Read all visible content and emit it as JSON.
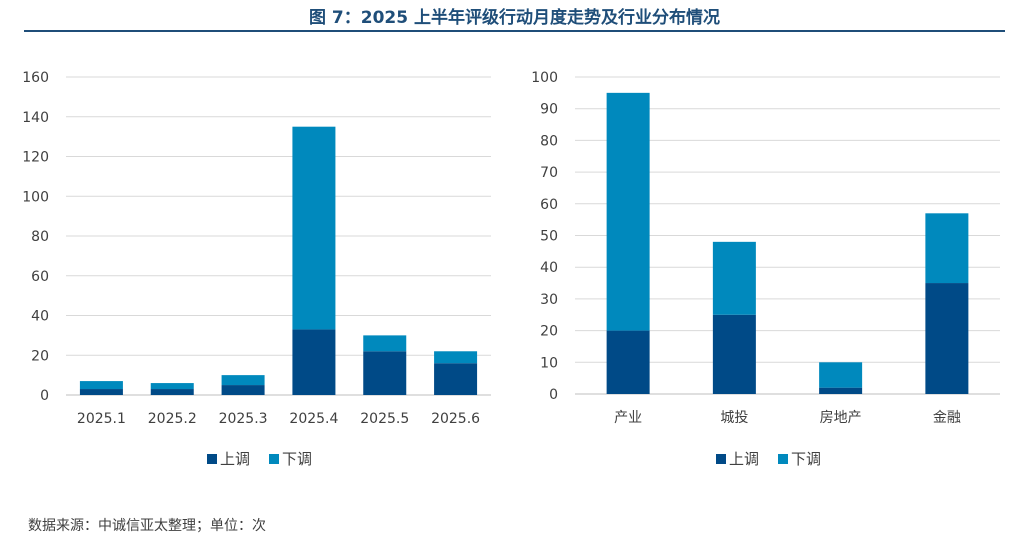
{
  "title": "图 7：2025 上半年评级行动月度走势及行业分布情况",
  "source": "数据来源：中诚信亚太整理；单位：次",
  "colors": {
    "up": "#004a87",
    "down": "#0089bd",
    "grid": "#d9d9d9",
    "axis": "#bfbfbf",
    "title": "#1f4e79"
  },
  "chart_data": [
    {
      "type": "bar",
      "stacked": true,
      "title": "",
      "xlabel": "",
      "ylabel": "",
      "categories": [
        "2025.1",
        "2025.2",
        "2025.3",
        "2025.4",
        "2025.5",
        "2025.6"
      ],
      "series": [
        {
          "name": "上调",
          "values": [
            3,
            3,
            5,
            33,
            22,
            16
          ]
        },
        {
          "name": "下调",
          "values": [
            4,
            3,
            5,
            102,
            8,
            6
          ]
        }
      ],
      "ylim": [
        0,
        160
      ],
      "yticks": [
        0,
        20,
        40,
        60,
        80,
        100,
        120,
        140,
        160
      ],
      "grid": true,
      "legend": "bottom"
    },
    {
      "type": "bar",
      "stacked": true,
      "title": "",
      "xlabel": "",
      "ylabel": "",
      "categories": [
        "产业",
        "城投",
        "房地产",
        "金融"
      ],
      "series": [
        {
          "name": "上调",
          "values": [
            20,
            25,
            2,
            35
          ]
        },
        {
          "name": "下调",
          "values": [
            75,
            23,
            8,
            22
          ]
        }
      ],
      "ylim": [
        0,
        100
      ],
      "yticks": [
        0,
        10,
        20,
        30,
        40,
        50,
        60,
        70,
        80,
        90,
        100
      ],
      "grid": true,
      "legend": "bottom"
    }
  ]
}
